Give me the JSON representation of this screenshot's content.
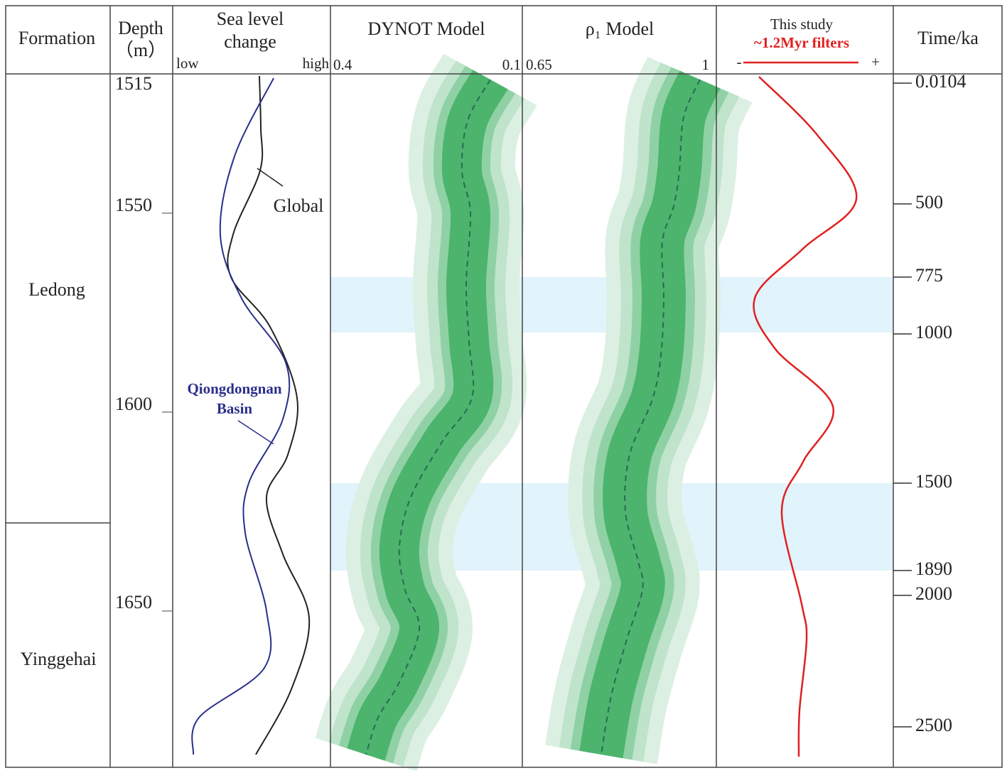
{
  "header": {
    "formation": "Formation",
    "depth": "Depth",
    "depth_unit": "（m）",
    "sea_level": [
      "Sea level",
      "change"
    ],
    "sea_low": "low",
    "sea_high": "high",
    "dynot": "DYNOT Model",
    "dynot_left": 0.4,
    "dynot_right": 0.1,
    "rho": "ρ₁ Model",
    "rho_left": 0.65,
    "rho_right": 1,
    "study": "This study",
    "filter": "~1.2Myr filters",
    "minus": "-",
    "plus": "+",
    "time": "Time/ka"
  },
  "formations": [
    "Ledong",
    "Yinggehai"
  ],
  "depth_ticks": [
    1515,
    1550,
    1600,
    1650
  ],
  "time_ticks": [
    0.0104,
    500,
    775,
    1000,
    1500,
    1890,
    2000,
    2500
  ],
  "annotations": {
    "global": "Global",
    "basin": [
      "Qiongdongnan",
      "Basin"
    ]
  }
}
